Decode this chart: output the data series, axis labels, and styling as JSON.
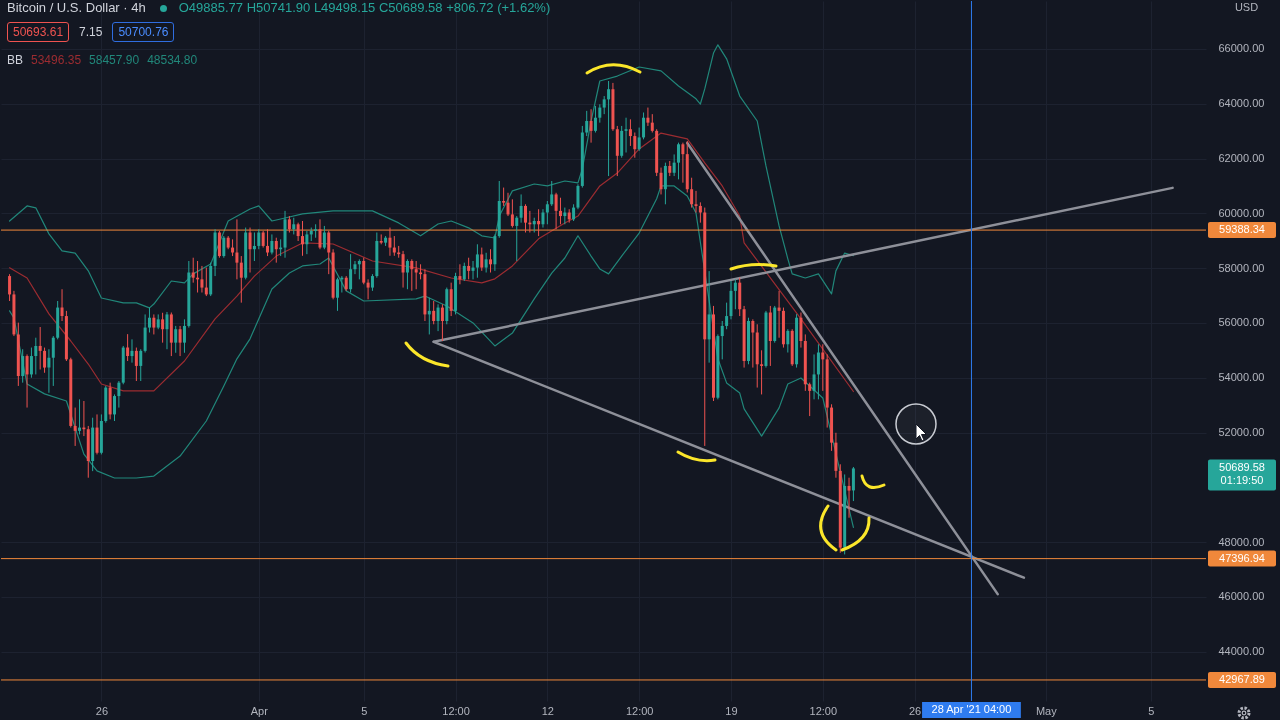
{
  "chart_data": {
    "type": "candlestick",
    "title": "Bitcoin / U.S. Dollar · 4h",
    "subtitle": "O49885.77 H50741.90 L49498.15 C50689.58 +806.72 (+1.62%)",
    "ylabel": "USD",
    "annotations": [
      "50693.61",
      "7.15",
      "50700.76",
      "BB",
      "53496.35",
      "58457.90",
      "48534.80",
      "50689.58",
      "01:19:50"
    ],
    "x": [
      "2021-03-22T12:00",
      "2021-03-22T16:00",
      "2021-03-22T20:00",
      "2021-03-23T00:00",
      "2021-03-23T04:00",
      "2021-03-23T08:00",
      "2021-03-23T12:00",
      "2021-03-23T16:00",
      "2021-03-23T20:00",
      "2021-03-24T00:00",
      "2021-03-24T04:00",
      "2021-03-24T08:00",
      "2021-03-24T12:00",
      "2021-03-24T16:00",
      "2021-03-24T20:00",
      "2021-03-25T00:00",
      "2021-03-25T04:00",
      "2021-03-25T08:00",
      "2021-03-25T12:00",
      "2021-03-25T16:00",
      "2021-03-25T20:00",
      "2021-03-26T00:00",
      "2021-03-26T04:00",
      "2021-03-26T08:00",
      "2021-03-26T12:00",
      "2021-03-26T16:00",
      "2021-03-26T20:00",
      "2021-03-27T00:00",
      "2021-03-27T04:00",
      "2021-03-27T08:00",
      "2021-03-27T12:00",
      "2021-03-27T16:00",
      "2021-03-27T20:00",
      "2021-03-28T00:00",
      "2021-03-28T04:00",
      "2021-03-28T08:00",
      "2021-03-28T12:00",
      "2021-03-28T16:00",
      "2021-03-28T20:00",
      "2021-03-29T00:00",
      "2021-03-29T04:00",
      "2021-03-29T08:00",
      "2021-03-29T12:00",
      "2021-03-29T16:00",
      "2021-03-29T20:00",
      "2021-03-30T00:00",
      "2021-03-30T04:00",
      "2021-03-30T08:00",
      "2021-03-30T12:00",
      "2021-03-30T16:00",
      "2021-03-30T20:00",
      "2021-03-31T00:00",
      "2021-03-31T04:00",
      "2021-03-31T08:00",
      "2021-03-31T12:00",
      "2021-03-31T16:00",
      "2021-03-31T20:00",
      "2021-04-01T00:00",
      "2021-04-01T04:00",
      "2021-04-01T08:00",
      "2021-04-01T12:00",
      "2021-04-01T16:00",
      "2021-04-01T20:00",
      "2021-04-02T00:00",
      "2021-04-02T04:00",
      "2021-04-02T08:00",
      "2021-04-02T12:00",
      "2021-04-02T16:00",
      "2021-04-02T20:00",
      "2021-04-03T00:00",
      "2021-04-03T04:00",
      "2021-04-03T08:00",
      "2021-04-03T12:00",
      "2021-04-03T16:00",
      "2021-04-03T20:00",
      "2021-04-04T00:00",
      "2021-04-04T04:00",
      "2021-04-04T08:00",
      "2021-04-04T12:00",
      "2021-04-04T16:00",
      "2021-04-04T20:00",
      "2021-04-05T00:00",
      "2021-04-05T04:00",
      "2021-04-05T08:00",
      "2021-04-05T12:00",
      "2021-04-05T16:00",
      "2021-04-05T20:00",
      "2021-04-06T00:00",
      "2021-04-06T04:00",
      "2021-04-06T08:00",
      "2021-04-06T12:00",
      "2021-04-06T16:00",
      "2021-04-06T20:00",
      "2021-04-07T00:00",
      "2021-04-07T04:00",
      "2021-04-07T08:00",
      "2021-04-07T12:00",
      "2021-04-07T16:00",
      "2021-04-07T20:00",
      "2021-04-08T00:00",
      "2021-04-08T04:00",
      "2021-04-08T08:00",
      "2021-04-08T12:00",
      "2021-04-08T16:00",
      "2021-04-08T20:00",
      "2021-04-09T00:00",
      "2021-04-09T04:00",
      "2021-04-09T08:00",
      "2021-04-09T12:00",
      "2021-04-09T16:00",
      "2021-04-09T20:00",
      "2021-04-10T00:00",
      "2021-04-10T04:00",
      "2021-04-10T08:00",
      "2021-04-10T12:00",
      "2021-04-10T16:00",
      "2021-04-10T20:00",
      "2021-04-11T00:00",
      "2021-04-11T04:00",
      "2021-04-11T08:00",
      "2021-04-11T12:00",
      "2021-04-11T16:00",
      "2021-04-11T20:00",
      "2021-04-12T00:00",
      "2021-04-12T04:00",
      "2021-04-12T08:00",
      "2021-04-12T12:00",
      "2021-04-12T16:00",
      "2021-04-12T20:00",
      "2021-04-13T00:00",
      "2021-04-13T04:00",
      "2021-04-13T08:00",
      "2021-04-13T12:00",
      "2021-04-13T16:00",
      "2021-04-13T20:00",
      "2021-04-14T00:00",
      "2021-04-14T04:00",
      "2021-04-14T08:00",
      "2021-04-14T12:00",
      "2021-04-14T16:00",
      "2021-04-14T20:00",
      "2021-04-15T00:00",
      "2021-04-15T04:00",
      "2021-04-15T08:00",
      "2021-04-15T12:00",
      "2021-04-15T16:00",
      "2021-04-15T20:00",
      "2021-04-16T00:00",
      "2021-04-16T04:00",
      "2021-04-16T08:00",
      "2021-04-16T12:00",
      "2021-04-16T16:00",
      "2021-04-16T20:00",
      "2021-04-17T00:00",
      "2021-04-17T04:00",
      "2021-04-17T08:00",
      "2021-04-17T12:00",
      "2021-04-17T16:00",
      "2021-04-17T20:00",
      "2021-04-18T00:00",
      "2021-04-18T04:00",
      "2021-04-18T08:00",
      "2021-04-18T12:00",
      "2021-04-18T16:00",
      "2021-04-18T20:00",
      "2021-04-19T00:00",
      "2021-04-19T04:00",
      "2021-04-19T08:00",
      "2021-04-19T12:00",
      "2021-04-19T16:00",
      "2021-04-19T20:00",
      "2021-04-20T00:00",
      "2021-04-20T04:00",
      "2021-04-20T08:00",
      "2021-04-20T12:00",
      "2021-04-20T16:00",
      "2021-04-20T20:00",
      "2021-04-21T00:00",
      "2021-04-21T04:00",
      "2021-04-21T08:00",
      "2021-04-21T12:00",
      "2021-04-21T16:00",
      "2021-04-21T20:00",
      "2021-04-22T00:00",
      "2021-04-22T04:00",
      "2021-04-22T08:00",
      "2021-04-22T12:00",
      "2021-04-22T16:00",
      "2021-04-22T20:00",
      "2021-04-23T00:00",
      "2021-04-23T04:00",
      "2021-04-23T08:00",
      "2021-04-23T12:00",
      "2021-04-23T16:00"
    ],
    "ohlc": [
      [
        57710,
        57780,
        56800,
        57040
      ],
      [
        57040,
        57170,
        55520,
        55580
      ],
      [
        55580,
        56010,
        53700,
        54060
      ],
      [
        54060,
        55040,
        53820,
        54790
      ],
      [
        54790,
        54850,
        52910,
        54120
      ],
      [
        54120,
        55100,
        54000,
        54790
      ],
      [
        54790,
        55460,
        54120,
        55160
      ],
      [
        55160,
        55850,
        54300,
        54980
      ],
      [
        54980,
        55100,
        54180,
        54370
      ],
      [
        54370,
        55040,
        53450,
        54730
      ],
      [
        54730,
        55520,
        53700,
        55460
      ],
      [
        55460,
        56800,
        55400,
        56560
      ],
      [
        56560,
        57230,
        56070,
        56250
      ],
      [
        56250,
        56440,
        54610,
        54670
      ],
      [
        54670,
        54730,
        52180,
        52240
      ],
      [
        52240,
        52910,
        51510,
        52060
      ],
      [
        52060,
        53210,
        51930,
        52180
      ],
      [
        52180,
        53150,
        51870,
        52120
      ],
      [
        52120,
        52240,
        50350,
        50960
      ],
      [
        50960,
        52540,
        50590,
        52180
      ],
      [
        52180,
        52660,
        51200,
        51260
      ],
      [
        51260,
        52660,
        51200,
        52420
      ],
      [
        52420,
        53700,
        52360,
        53640
      ],
      [
        53640,
        53820,
        52480,
        52660
      ],
      [
        52660,
        53390,
        52420,
        53330
      ],
      [
        53330,
        53880,
        52910,
        53820
      ],
      [
        53820,
        55160,
        53760,
        55100
      ],
      [
        55100,
        55590,
        54610,
        54790
      ],
      [
        54790,
        55400,
        54550,
        54980
      ],
      [
        54980,
        55100,
        53880,
        54430
      ],
      [
        54430,
        55040,
        53880,
        54980
      ],
      [
        54980,
        56310,
        54920,
        55830
      ],
      [
        55830,
        56560,
        55650,
        56190
      ],
      [
        56190,
        56310,
        55580,
        55830
      ],
      [
        55830,
        56310,
        55770,
        56130
      ],
      [
        56130,
        56370,
        55280,
        55770
      ],
      [
        55770,
        56400,
        55040,
        56310
      ],
      [
        56310,
        56380,
        54790,
        55280
      ],
      [
        55280,
        55890,
        54910,
        55770
      ],
      [
        55770,
        55890,
        54790,
        55280
      ],
      [
        55280,
        56130,
        54910,
        55890
      ],
      [
        55890,
        58260,
        55830,
        57840
      ],
      [
        57840,
        58380,
        57470,
        57650
      ],
      [
        57650,
        58260,
        57110,
        57590
      ],
      [
        57590,
        58080,
        57110,
        57290
      ],
      [
        57290,
        58020,
        56980,
        57040
      ],
      [
        57040,
        58200,
        56980,
        58080
      ],
      [
        58080,
        59420,
        57710,
        59300
      ],
      [
        59300,
        59360,
        58380,
        58440
      ],
      [
        58440,
        59170,
        58380,
        59110
      ],
      [
        59110,
        59170,
        58690,
        58750
      ],
      [
        58750,
        59050,
        58440,
        58570
      ],
      [
        58570,
        59780,
        57590,
        58200
      ],
      [
        58200,
        58440,
        56740,
        57650
      ],
      [
        57650,
        59480,
        57590,
        59300
      ],
      [
        59300,
        59480,
        57840,
        58690
      ],
      [
        58690,
        59300,
        58260,
        58810
      ],
      [
        58810,
        59420,
        58690,
        59300
      ],
      [
        59300,
        59360,
        58750,
        58810
      ],
      [
        58810,
        59420,
        58440,
        58570
      ],
      [
        58570,
        59230,
        58500,
        58990
      ],
      [
        58990,
        59110,
        58200,
        58690
      ],
      [
        58690,
        59050,
        58440,
        58750
      ],
      [
        58750,
        60090,
        58380,
        59780
      ],
      [
        59780,
        59900,
        59300,
        59420
      ],
      [
        59420,
        59840,
        59230,
        59600
      ],
      [
        59600,
        59660,
        58990,
        59170
      ],
      [
        59170,
        59720,
        58450,
        58870
      ],
      [
        58870,
        59360,
        58510,
        59230
      ],
      [
        59230,
        59480,
        58990,
        59360
      ],
      [
        59360,
        59600,
        59110,
        59420
      ],
      [
        59420,
        59780,
        58690,
        58750
      ],
      [
        58750,
        59540,
        58690,
        59300
      ],
      [
        59300,
        59360,
        57780,
        58570
      ],
      [
        58570,
        58690,
        56860,
        56920
      ],
      [
        56920,
        57650,
        56440,
        57590
      ],
      [
        57590,
        57710,
        57110,
        57650
      ],
      [
        57650,
        57710,
        57170,
        57230
      ],
      [
        57230,
        58510,
        57110,
        57960
      ],
      [
        57960,
        58260,
        57780,
        58140
      ],
      [
        58140,
        58320,
        57590,
        58260
      ],
      [
        58260,
        58380,
        57410,
        57470
      ],
      [
        57470,
        57590,
        56860,
        57290
      ],
      [
        57290,
        57780,
        57170,
        57710
      ],
      [
        57710,
        59300,
        57650,
        58990
      ],
      [
        58990,
        59230,
        58870,
        58930
      ],
      [
        58930,
        59170,
        58810,
        59110
      ],
      [
        59110,
        59480,
        58450,
        58750
      ],
      [
        58750,
        59170,
        58450,
        58570
      ],
      [
        58570,
        58810,
        58380,
        58510
      ],
      [
        58510,
        58630,
        57290,
        57840
      ],
      [
        57840,
        58320,
        57230,
        58260
      ],
      [
        58260,
        58320,
        57170,
        57960
      ],
      [
        57960,
        58260,
        57230,
        57840
      ],
      [
        57840,
        58140,
        57590,
        57780
      ],
      [
        57780,
        57960,
        56070,
        56310
      ],
      [
        56310,
        56920,
        55580,
        56440
      ],
      [
        56440,
        56800,
        55950,
        56070
      ],
      [
        56070,
        56680,
        55700,
        56560
      ],
      [
        56560,
        56680,
        55340,
        56070
      ],
      [
        56070,
        57290,
        55950,
        57230
      ],
      [
        57230,
        57470,
        56250,
        56440
      ],
      [
        56440,
        57830,
        56310,
        57710
      ],
      [
        57710,
        58140,
        57410,
        57590
      ],
      [
        57590,
        58200,
        57530,
        58080
      ],
      [
        58080,
        58380,
        57590,
        57900
      ],
      [
        57900,
        58260,
        57590,
        58020
      ],
      [
        58020,
        58870,
        57650,
        58500
      ],
      [
        58500,
        58750,
        57900,
        58020
      ],
      [
        58020,
        58560,
        57840,
        58320
      ],
      [
        58320,
        58690,
        57840,
        58140
      ],
      [
        58140,
        59230,
        57900,
        59170
      ],
      [
        59170,
        61180,
        59110,
        60450
      ],
      [
        60450,
        60940,
        60270,
        60390
      ],
      [
        60390,
        60750,
        59900,
        59960
      ],
      [
        59960,
        60510,
        59480,
        59540
      ],
      [
        59540,
        59900,
        58260,
        59840
      ],
      [
        59840,
        60690,
        59660,
        60270
      ],
      [
        60270,
        60330,
        59300,
        59660
      ],
      [
        59660,
        60090,
        59300,
        59600
      ],
      [
        59600,
        59840,
        59300,
        59720
      ],
      [
        59720,
        60150,
        59170,
        59600
      ],
      [
        59600,
        60150,
        59480,
        60030
      ],
      [
        60030,
        60450,
        59600,
        60330
      ],
      [
        60330,
        61180,
        60270,
        60690
      ],
      [
        60690,
        60750,
        59420,
        60090
      ],
      [
        60090,
        60570,
        59600,
        59900
      ],
      [
        59900,
        60210,
        59600,
        60030
      ],
      [
        60030,
        60150,
        59660,
        59780
      ],
      [
        59780,
        60330,
        59720,
        60210
      ],
      [
        60210,
        61060,
        60150,
        61000
      ],
      [
        61000,
        63190,
        60940,
        62950
      ],
      [
        62950,
        63740,
        62820,
        63370
      ],
      [
        63370,
        63800,
        62580,
        63010
      ],
      [
        63010,
        63920,
        62950,
        63490
      ],
      [
        63490,
        63980,
        63310,
        63860
      ],
      [
        63860,
        64280,
        63620,
        64160
      ],
      [
        64160,
        64830,
        61360,
        64530
      ],
      [
        64530,
        64760,
        63010,
        63070
      ],
      [
        63070,
        63190,
        61360,
        62100
      ],
      [
        62100,
        63190,
        62030,
        63010
      ],
      [
        63010,
        63490,
        62220,
        63070
      ],
      [
        63070,
        63430,
        62460,
        62820
      ],
      [
        62820,
        62950,
        62030,
        62340
      ],
      [
        62340,
        63130,
        62280,
        62770
      ],
      [
        62770,
        63680,
        62700,
        63490
      ],
      [
        63490,
        63860,
        63190,
        63310
      ],
      [
        63310,
        63620,
        62950,
        63010
      ],
      [
        63010,
        63070,
        61360,
        61480
      ],
      [
        61480,
        61670,
        60690,
        60880
      ],
      [
        60880,
        61850,
        60330,
        61730
      ],
      [
        61730,
        61910,
        61360,
        61480
      ],
      [
        61480,
        62150,
        61360,
        61850
      ],
      [
        61850,
        62580,
        61240,
        62520
      ],
      [
        62520,
        62580,
        61120,
        62160
      ],
      [
        62160,
        62640,
        60760,
        60880
      ],
      [
        60880,
        61300,
        60210,
        60330
      ],
      [
        60330,
        60820,
        60030,
        60270
      ],
      [
        60270,
        60400,
        59660,
        60030
      ],
      [
        60030,
        60210,
        51510,
        55400
      ],
      [
        55400,
        57890,
        54550,
        56310
      ],
      [
        56310,
        56620,
        53150,
        53270
      ],
      [
        53270,
        55580,
        53210,
        55520
      ],
      [
        55520,
        56070,
        54670,
        55890
      ],
      [
        55890,
        56740,
        55770,
        56250
      ],
      [
        56250,
        57530,
        56130,
        57170
      ],
      [
        57170,
        57590,
        56500,
        57470
      ],
      [
        57470,
        57650,
        56250,
        56500
      ],
      [
        56500,
        56620,
        54370,
        54610
      ],
      [
        54610,
        56190,
        54490,
        56070
      ],
      [
        56070,
        56130,
        54370,
        55650
      ],
      [
        55650,
        55950,
        53640,
        54490
      ],
      [
        54490,
        55000,
        53390,
        54430
      ],
      [
        54430,
        56440,
        54370,
        56380
      ],
      [
        56380,
        56620,
        54430,
        55340
      ],
      [
        55340,
        56620,
        55280,
        56560
      ],
      [
        56560,
        57170,
        55460,
        56440
      ],
      [
        56440,
        56560,
        55100,
        55220
      ],
      [
        55220,
        55770,
        54920,
        55710
      ],
      [
        55710,
        55770,
        54430,
        54490
      ],
      [
        54490,
        56320,
        54370,
        56190
      ],
      [
        56190,
        56380,
        55100,
        55340
      ],
      [
        55340,
        55580,
        53520,
        53760
      ],
      [
        53760,
        53820,
        52600,
        53520
      ],
      [
        53520,
        54850,
        53210,
        54120
      ],
      [
        54120,
        55220,
        53210,
        54920
      ],
      [
        54920,
        55220,
        53520,
        54670
      ],
      [
        54670,
        54850,
        52180,
        52910
      ],
      [
        52910,
        53030,
        51330,
        51630
      ],
      [
        51630,
        51990,
        50350,
        50600
      ],
      [
        50600,
        50840,
        47610,
        47800
      ],
      [
        47800,
        50470,
        47550,
        50050
      ],
      [
        50050,
        50350,
        48890,
        49880
      ],
      [
        49885.77,
        50741.9,
        49498.15,
        50689.58
      ]
    ],
    "colors": [
      "#ef5350",
      "#ef5350",
      "#ef5350",
      "#26a69a",
      "#ef5350",
      "#26a69a",
      "#26a69a",
      "#ef5350",
      "#ef5350",
      "#26a69a",
      "#26a69a",
      "#26a69a",
      "#ef5350",
      "#ef5350",
      "#ef5350",
      "#ef5350",
      "#26a69a",
      "#ef5350",
      "#ef5350",
      "#26a69a",
      "#ef5350",
      "#26a69a",
      "#26a69a",
      "#ef5350",
      "#26a69a",
      "#26a69a",
      "#26a69a",
      "#ef5350",
      "#26a69a",
      "#ef5350",
      "#26a69a",
      "#26a69a",
      "#26a69a",
      "#ef5350",
      "#26a69a",
      "#ef5350",
      "#26a69a",
      "#ef5350",
      "#26a69a",
      "#ef5350",
      "#26a69a",
      "#26a69a",
      "#ef5350",
      "#ef5350",
      "#ef5350",
      "#ef5350",
      "#26a69a",
      "#26a69a",
      "#ef5350",
      "#26a69a",
      "#ef5350",
      "#ef5350",
      "#ef5350",
      "#ef5350",
      "#26a69a",
      "#ef5350",
      "#26a69a",
      "#26a69a",
      "#ef5350",
      "#ef5350",
      "#26a69a",
      "#ef5350",
      "#26a69a",
      "#26a69a",
      "#ef5350",
      "#26a69a",
      "#ef5350",
      "#ef5350",
      "#26a69a",
      "#26a69a",
      "#26a69a",
      "#ef5350",
      "#26a69a",
      "#ef5350",
      "#ef5350",
      "#26a69a",
      "#26a69a",
      "#ef5350",
      "#26a69a",
      "#26a69a",
      "#26a69a",
      "#ef5350",
      "#ef5350",
      "#26a69a",
      "#26a69a",
      "#ef5350",
      "#26a69a",
      "#ef5350",
      "#ef5350",
      "#ef5350",
      "#ef5350",
      "#26a69a",
      "#ef5350",
      "#ef5350",
      "#ef5350",
      "#ef5350",
      "#26a69a",
      "#ef5350",
      "#26a69a",
      "#ef5350",
      "#26a69a",
      "#ef5350",
      "#26a69a",
      "#ef5350",
      "#26a69a",
      "#ef5350",
      "#26a69a",
      "#26a69a",
      "#ef5350",
      "#26a69a",
      "#ef5350",
      "#26a69a",
      "#26a69a",
      "#ef5350",
      "#ef5350",
      "#ef5350",
      "#26a69a",
      "#26a69a",
      "#ef5350",
      "#ef5350",
      "#26a69a",
      "#ef5350",
      "#26a69a",
      "#26a69a",
      "#26a69a",
      "#ef5350",
      "#ef5350",
      "#26a69a",
      "#ef5350",
      "#26a69a",
      "#26a69a",
      "#26a69a",
      "#26a69a",
      "#ef5350",
      "#26a69a",
      "#26a69a",
      "#26a69a",
      "#26a69a",
      "#ef5350",
      "#ef5350",
      "#26a69a",
      "#26a69a",
      "#ef5350",
      "#ef5350",
      "#26a69a",
      "#26a69a",
      "#ef5350",
      "#ef5350",
      "#ef5350",
      "#ef5350",
      "#26a69a",
      "#ef5350",
      "#26a69a",
      "#26a69a",
      "#ef5350",
      "#ef5350",
      "#ef5350",
      "#ef5350",
      "#ef5350",
      "#ef5350",
      "#26a69a",
      "#ef5350",
      "#26a69a",
      "#26a69a",
      "#26a69a",
      "#26a69a",
      "#26a69a",
      "#ef5350",
      "#ef5350",
      "#26a69a",
      "#ef5350",
      "#ef5350",
      "#ef5350",
      "#26a69a",
      "#ef5350",
      "#26a69a",
      "#ef5350",
      "#ef5350",
      "#26a69a",
      "#ef5350",
      "#26a69a",
      "#ef5350",
      "#ef5350",
      "#ef5350",
      "#26a69a",
      "#26a69a",
      "#ef5350",
      "#ef5350",
      "#ef5350",
      "#ef5350",
      "#ef5350",
      "#26a69a",
      "#ef5350",
      "#26a69a"
    ],
    "series": [
      {
        "type": "line",
        "color": "#21877a",
        "x": [
          "2021-03-22T12:00",
          "2021-03-23T04:00",
          "2021-03-23T12:00",
          "2021-03-24T00:00",
          "2021-03-24T12:00",
          "2021-03-25T00:00",
          "2021-03-25T12:00",
          "2021-03-26T00:00",
          "2021-03-26T20:00",
          "2021-03-27T08:00",
          "2021-03-27T20:00",
          "2021-03-28T00:00",
          "2021-03-28T16:00",
          "2021-03-29T04:00",
          "2021-03-29T12:00",
          "2021-03-30T04:00",
          "2021-03-30T20:00",
          "2021-03-31T16:00",
          "2021-04-01T00:00",
          "2021-04-01T12:00",
          "2021-04-02T00:00",
          "2021-04-02T16:00",
          "2021-04-03T20:00",
          "2021-04-05T08:00",
          "2021-04-06T08:00",
          "2021-04-07T04:00",
          "2021-04-07T20:00",
          "2021-04-08T08:00",
          "2021-04-09T00:00",
          "2021-04-09T12:00",
          "2021-04-10T00:00",
          "2021-04-10T04:00",
          "2021-04-10T16:00",
          "2021-04-11T12:00",
          "2021-04-12T00:00",
          "2021-04-12T16:00",
          "2021-04-13T04:00",
          "2021-04-13T08:00",
          "2021-04-13T16:00",
          "2021-04-14T00:00",
          "2021-04-14T16:00",
          "2021-04-15T12:00",
          "2021-04-16T08:00",
          "2021-04-17T00:00",
          "2021-04-17T16:00",
          "2021-04-17T20:00",
          "2021-04-18T00:00",
          "2021-04-18T08:00",
          "2021-04-18T12:00",
          "2021-04-18T20:00",
          "2021-04-19T08:00",
          "2021-04-20T00:00",
          "2021-04-20T08:00",
          "2021-04-20T20:00",
          "2021-04-21T04:00",
          "2021-04-21T08:00",
          "2021-04-21T20:00",
          "2021-04-22T08:00",
          "2021-04-22T20:00",
          "2021-04-23T00:00",
          "2021-04-23T08:00",
          "2021-04-23T16:00"
        ],
        "values": [
          59720,
          60270,
          60200,
          59250,
          58630,
          58550,
          57900,
          56910,
          56730,
          56730,
          56550,
          56690,
          57530,
          57460,
          57790,
          58150,
          59720,
          60160,
          60270,
          59720,
          59830,
          59980,
          60090,
          60090,
          59650,
          59180,
          59610,
          59720,
          59470,
          59180,
          59100,
          59900,
          60820,
          61070,
          61000,
          61180,
          61110,
          61620,
          63370,
          64830,
          65010,
          65340,
          65200,
          64650,
          64180,
          63990,
          64540,
          65850,
          66150,
          65640,
          64280,
          63370,
          61730,
          59540,
          58340,
          57790,
          57640,
          57790,
          57060,
          57900,
          58550,
          58457.9
        ]
      },
      {
        "type": "line",
        "color": "#9c2c31",
        "x": [
          "2021-03-22T12:00",
          "2021-03-23T04:00",
          "2021-03-24T00:00",
          "2021-03-24T20:00",
          "2021-03-25T12:00",
          "2021-03-26T00:00",
          "2021-03-26T20:00",
          "2021-03-28T00:00",
          "2021-03-29T04:00",
          "2021-03-30T08:00",
          "2021-03-31T04:00",
          "2021-03-31T20:00",
          "2021-04-01T16:00",
          "2021-04-02T16:00",
          "2021-04-03T20:00",
          "2021-04-05T08:00",
          "2021-04-07T00:00",
          "2021-04-08T08:00",
          "2021-04-09T12:00",
          "2021-04-10T00:00",
          "2021-04-10T16:00",
          "2021-04-11T16:00",
          "2021-04-12T16:00",
          "2021-04-13T04:00",
          "2021-04-14T00:00",
          "2021-04-14T16:00",
          "2021-04-15T12:00",
          "2021-04-16T08:00",
          "2021-04-17T08:00",
          "2021-04-18T00:00",
          "2021-04-18T16:00",
          "2021-04-19T08:00",
          "2021-04-19T12:00",
          "2021-04-21T16:00",
          "2021-04-23T16:00"
        ],
        "values": [
          58010,
          57640,
          56330,
          55340,
          54500,
          53770,
          53520,
          53520,
          54610,
          56150,
          56980,
          57710,
          58440,
          58920,
          58880,
          58260,
          58010,
          57640,
          57460,
          57610,
          58080,
          59070,
          59650,
          59900,
          61000,
          61470,
          62350,
          62930,
          62720,
          61840,
          61000,
          59900,
          58920,
          56150,
          53496.35
        ]
      },
      {
        "type": "line",
        "color": "#21877a",
        "x": [
          "2021-03-22T12:00",
          "2021-03-22T16:00",
          "2021-03-23T04:00",
          "2021-03-23T20:00",
          "2021-03-24T16:00",
          "2021-03-25T08:00",
          "2021-03-25T20:00",
          "2021-03-26T12:00",
          "2021-03-27T08:00",
          "2021-03-28T00:00",
          "2021-03-29T00:00",
          "2021-03-30T00:00",
          "2021-03-30T16:00",
          "2021-03-31T04:00",
          "2021-03-31T16:00",
          "2021-04-01T12:00",
          "2021-04-02T04:00",
          "2021-04-02T16:00",
          "2021-04-03T08:00",
          "2021-04-03T16:00",
          "2021-04-04T08:00",
          "2021-04-05T00:00",
          "2021-04-07T00:00",
          "2021-04-07T08:00",
          "2021-04-08T04:00",
          "2021-04-09T04:00",
          "2021-04-10T00:00",
          "2021-04-10T16:00",
          "2021-04-11T12:00",
          "2021-04-12T04:00",
          "2021-04-12T16:00",
          "2021-04-13T04:00",
          "2021-04-13T16:00",
          "2021-04-14T00:00",
          "2021-04-14T08:00",
          "2021-04-14T20:00",
          "2021-04-15T12:00",
          "2021-04-16T04:00",
          "2021-04-16T08:00",
          "2021-04-16T20:00",
          "2021-04-17T08:00",
          "2021-04-17T16:00",
          "2021-04-18T12:00",
          "2021-04-18T20:00",
          "2021-04-19T08:00",
          "2021-04-19T12:00",
          "2021-04-20T04:00",
          "2021-04-20T20:00",
          "2021-04-21T04:00",
          "2021-04-21T16:00",
          "2021-04-22T12:00",
          "2021-04-23T16:00"
        ],
        "values": [
          56440,
          56180,
          53770,
          53410,
          53150,
          51210,
          50600,
          50340,
          50340,
          50410,
          51140,
          52420,
          53700,
          54690,
          55420,
          57240,
          57820,
          58080,
          58150,
          58370,
          57170,
          56800,
          56880,
          56980,
          56620,
          56000,
          55160,
          55630,
          56880,
          57820,
          58370,
          59180,
          58440,
          57970,
          57790,
          58440,
          59280,
          60530,
          61000,
          61000,
          60630,
          60010,
          54690,
          53810,
          53440,
          52860,
          51870,
          52900,
          53770,
          53990,
          53260,
          48534.8
        ]
      },
      {
        "type": "line",
        "color": "#8e9099",
        "x": [
          "2021-04-07T16:00",
          "2021-05-05T20:00"
        ],
        "values": [
          55310,
          60930
        ]
      },
      {
        "type": "line",
        "color": "#8e9099",
        "x": [
          "2021-04-07T16:00",
          "2021-04-30T04:00"
        ],
        "values": [
          55310,
          46700
        ]
      },
      {
        "type": "line",
        "color": "#8e9099",
        "x": [
          "2021-04-17T08:00",
          "2021-04-29T04:00"
        ],
        "values": [
          62570,
          46100
        ]
      }
    ],
    "xlim": [
      "2021-03-22T08:44",
      "2021-05-06T22:00"
    ],
    "ylim": [
      42200,
      67750
    ],
    "xticks": [
      {
        "value": "2021-03-26",
        "label": "26"
      },
      {
        "value": "2021-04-01",
        "label": "Apr"
      },
      {
        "value": "2021-04-05",
        "label": "5"
      },
      {
        "value": "2021-04-08T12:00",
        "label": "12:00"
      },
      {
        "value": "2021-04-12",
        "label": "12"
      },
      {
        "value": "2021-04-15T12:00",
        "label": "12:00"
      },
      {
        "value": "2021-04-19",
        "label": "19"
      },
      {
        "value": "2021-04-22T12:00",
        "label": "12:00"
      },
      {
        "value": "2021-04-26",
        "label": "26"
      },
      {
        "value": "2021-05-01",
        "label": "May"
      },
      {
        "value": "2021-05-05",
        "label": "5"
      }
    ],
    "yticks": [
      {
        "value": 44000,
        "label": "44000.00"
      },
      {
        "value": 46000,
        "label": "46000.00"
      },
      {
        "value": 48000,
        "label": "48000.00"
      },
      {
        "value": 52000,
        "label": "52000.00"
      },
      {
        "value": 54000,
        "label": "54000.00"
      },
      {
        "value": 56000,
        "label": "56000.00"
      },
      {
        "value": 58000,
        "label": "58000.00"
      },
      {
        "value": 60000,
        "label": "60000.00"
      },
      {
        "value": 62000,
        "label": "62000.00"
      },
      {
        "value": 64000,
        "label": "64000.00"
      },
      {
        "value": 66000,
        "label": "66000.00"
      }
    ],
    "ref_lines": [
      {
        "axis": "y",
        "value": 59388.34,
        "label": "59388.34",
        "color": "#f0883b"
      },
      {
        "axis": "y",
        "value": 47396.94,
        "label": "47396.94",
        "color": "#f0883b"
      },
      {
        "axis": "y",
        "value": 42967.89,
        "label": "42967.89",
        "color": "#f0883b"
      },
      {
        "axis": "x",
        "value": "2021-04-28T04:00",
        "label": "28 Apr '21 04:00",
        "color": "#2f7cf0"
      }
    ],
    "grid": true
  }
}
